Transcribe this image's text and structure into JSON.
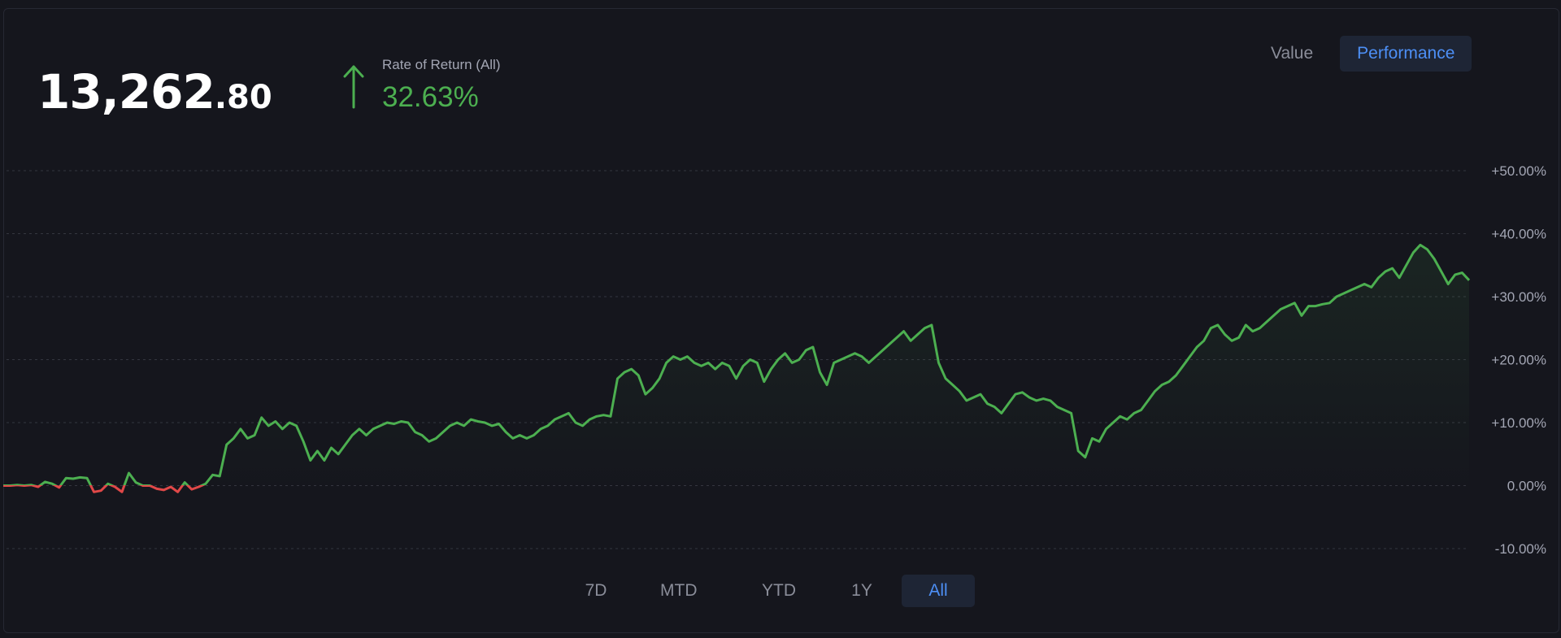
{
  "balance": {
    "integer": "13,262",
    "decimal": ".80"
  },
  "rate_of_return": {
    "label": "Rate of Return (All)",
    "value": "32.63%",
    "direction": "up"
  },
  "view_toggle": {
    "options": [
      "Value",
      "Performance"
    ],
    "selected": "Performance"
  },
  "range_tabs": {
    "options": [
      "7D",
      "MTD",
      "YTD",
      "1Y",
      "All"
    ],
    "selected": "All"
  },
  "colors": {
    "background": "#15161d",
    "positive": "#4caf50",
    "negative": "#e04848",
    "accent": "#4d8ff5",
    "gridline": "#34363f",
    "text_muted": "#a3a6b4"
  },
  "chart_data": {
    "type": "line",
    "title": "",
    "xlabel": "",
    "ylabel": "",
    "ylim": [
      -10,
      50
    ],
    "yticks": [
      "+50.00%",
      "+40.00%",
      "+30.00%",
      "+20.00%",
      "+10.00%",
      "0.00%",
      "-10.00%"
    ],
    "ytick_values": [
      50,
      40,
      30,
      20,
      10,
      0,
      -10
    ],
    "grid": true,
    "series": [
      {
        "values": [
          0,
          0,
          0.1,
          0,
          0.1,
          -0.2,
          0.6,
          0.3,
          -0.3,
          1.2,
          1.1,
          1.3,
          1.2,
          -1.0,
          -0.8,
          0.3,
          -0.2,
          -1.0,
          2.0,
          0.5,
          0,
          0,
          -0.5,
          -0.7,
          -0.2,
          -1.0,
          0.5,
          -0.6,
          -0.2,
          0.3,
          1.7,
          1.5,
          6.5,
          7.5,
          9.0,
          7.5,
          8.0,
          10.8,
          9.5,
          10.2,
          9.0,
          10.0,
          9.5,
          7.0,
          4.0,
          5.5,
          4.0,
          6.0,
          5.0,
          6.5,
          8.0,
          9.0,
          8.0,
          9.0,
          9.5,
          10.0,
          9.8,
          10.2,
          10.0,
          8.5,
          8.0,
          7.0,
          7.5,
          8.5,
          9.5,
          10.0,
          9.5,
          10.5,
          10.2,
          10.0,
          9.5,
          9.8,
          8.5,
          7.5,
          8.0,
          7.5,
          8.0,
          9.0,
          9.5,
          10.5,
          11.0,
          11.5,
          10.0,
          9.5,
          10.5,
          11.0,
          11.2,
          11.0,
          17.0,
          18.0,
          18.5,
          17.5,
          14.5,
          15.5,
          17.0,
          19.5,
          20.5,
          20.0,
          20.5,
          19.5,
          19.0,
          19.5,
          18.5,
          19.5,
          19.0,
          17.0,
          19.0,
          20.0,
          19.5,
          16.5,
          18.5,
          20.0,
          21.0,
          19.5,
          20.0,
          21.5,
          22.0,
          18.0,
          16.0,
          19.5,
          20.0,
          20.5,
          21.0,
          20.5,
          19.5,
          20.5,
          21.5,
          22.5,
          23.5,
          24.5,
          23.0,
          24.0,
          25.0,
          25.5,
          19.5,
          17.0,
          16.0,
          15.0,
          13.5,
          14.0,
          14.5,
          13.0,
          12.5,
          11.5,
          13.0,
          14.5,
          14.8,
          14.0,
          13.5,
          13.8,
          13.5,
          12.5,
          12.0,
          11.5,
          5.5,
          4.5,
          7.5,
          7.0,
          9.0,
          10.0,
          11.0,
          10.5,
          11.5,
          12.0,
          13.5,
          15.0,
          16.0,
          16.5,
          17.5,
          19.0,
          20.5,
          22.0,
          23.0,
          25.0,
          25.5,
          24.0,
          23.0,
          23.5,
          25.5,
          24.5,
          25.0,
          26.0,
          27.0,
          28.0,
          28.5,
          29.0,
          27.0,
          28.5,
          28.5,
          28.8,
          29.0,
          30.0,
          30.5,
          31.0,
          31.5,
          32.0,
          31.5,
          33.0,
          34.0,
          34.5,
          33.0,
          35.0,
          37.0,
          38.2,
          37.5,
          36.0,
          34.0,
          32.0,
          33.5,
          33.8,
          32.6
        ]
      }
    ]
  }
}
